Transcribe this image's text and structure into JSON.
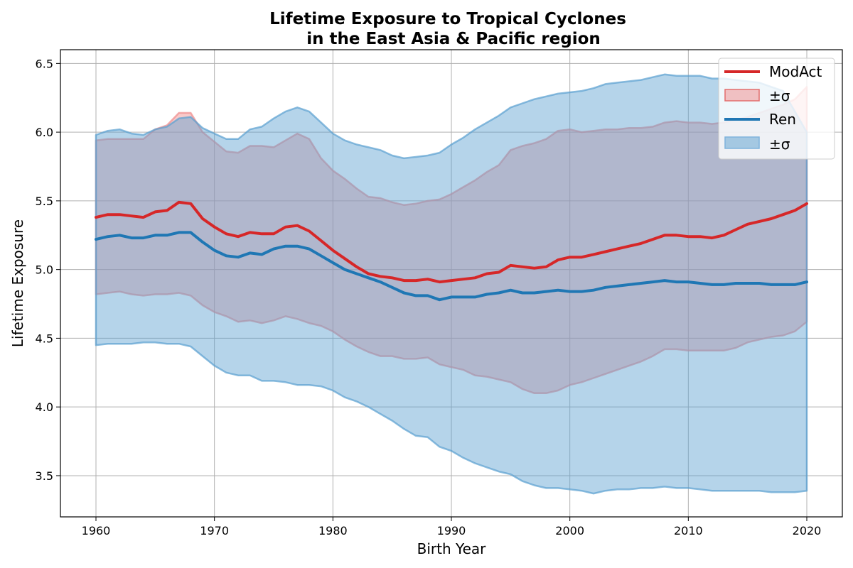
{
  "chart_data": {
    "type": "line",
    "title": [
      "Lifetime Exposure to Tropical Cyclones",
      "in the East Asia & Pacific region"
    ],
    "xlabel": "Birth Year",
    "ylabel": "Lifetime Exposure",
    "xlim": [
      1957,
      2023
    ],
    "ylim": [
      3.2,
      6.6
    ],
    "xticks": [
      1960,
      1970,
      1980,
      1990,
      2000,
      2010,
      2020
    ],
    "yticks": [
      3.5,
      4.0,
      4.5,
      5.0,
      5.5,
      6.0,
      6.5
    ],
    "ytick_labels": [
      "3.5",
      "4.0",
      "4.5",
      "5.0",
      "5.5",
      "6.0",
      "6.5"
    ],
    "grid": true,
    "legend_position": "top-right",
    "x": [
      1960,
      1961,
      1962,
      1963,
      1964,
      1965,
      1966,
      1967,
      1968,
      1969,
      1970,
      1971,
      1972,
      1973,
      1974,
      1975,
      1976,
      1977,
      1978,
      1979,
      1980,
      1981,
      1982,
      1983,
      1984,
      1985,
      1986,
      1987,
      1988,
      1989,
      1990,
      1991,
      1992,
      1993,
      1994,
      1995,
      1996,
      1997,
      1998,
      1999,
      2000,
      2001,
      2002,
      2003,
      2004,
      2005,
      2006,
      2007,
      2008,
      2009,
      2010,
      2011,
      2012,
      2013,
      2014,
      2015,
      2016,
      2017,
      2018,
      2019,
      2020
    ],
    "series": [
      {
        "name": "ModAct",
        "band_label": "±σ",
        "color": "#d62728",
        "band_color": "#f08a8a",
        "values": [
          5.38,
          5.4,
          5.4,
          5.39,
          5.38,
          5.42,
          5.43,
          5.49,
          5.48,
          5.37,
          5.31,
          5.26,
          5.24,
          5.27,
          5.26,
          5.26,
          5.31,
          5.32,
          5.28,
          5.21,
          5.14,
          5.08,
          5.02,
          4.97,
          4.95,
          4.94,
          4.92,
          4.92,
          4.93,
          4.91,
          4.92,
          4.93,
          4.94,
          4.97,
          4.98,
          5.03,
          5.02,
          5.01,
          5.02,
          5.07,
          5.09,
          5.09,
          5.11,
          5.13,
          5.15,
          5.17,
          5.19,
          5.22,
          5.25,
          5.25,
          5.24,
          5.24,
          5.23,
          5.25,
          5.29,
          5.33,
          5.35,
          5.37,
          5.4,
          5.43,
          5.48
        ],
        "upper": [
          5.94,
          5.95,
          5.95,
          5.95,
          5.95,
          6.02,
          6.05,
          6.14,
          6.14,
          6.0,
          5.93,
          5.86,
          5.85,
          5.9,
          5.9,
          5.89,
          5.94,
          5.99,
          5.95,
          5.81,
          5.72,
          5.66,
          5.59,
          5.53,
          5.52,
          5.49,
          5.47,
          5.48,
          5.5,
          5.51,
          5.55,
          5.6,
          5.65,
          5.71,
          5.76,
          5.87,
          5.9,
          5.92,
          5.95,
          6.01,
          6.02,
          6.0,
          6.01,
          6.02,
          6.02,
          6.03,
          6.03,
          6.04,
          6.07,
          6.08,
          6.07,
          6.07,
          6.06,
          6.07,
          6.09,
          6.11,
          6.14,
          6.17,
          6.2,
          6.24,
          6.33
        ],
        "lower": [
          4.82,
          4.83,
          4.84,
          4.82,
          4.81,
          4.82,
          4.82,
          4.83,
          4.81,
          4.74,
          4.69,
          4.66,
          4.62,
          4.63,
          4.61,
          4.63,
          4.66,
          4.64,
          4.61,
          4.59,
          4.55,
          4.49,
          4.44,
          4.4,
          4.37,
          4.37,
          4.35,
          4.35,
          4.36,
          4.31,
          4.29,
          4.27,
          4.23,
          4.22,
          4.2,
          4.18,
          4.13,
          4.1,
          4.1,
          4.12,
          4.16,
          4.18,
          4.21,
          4.24,
          4.27,
          4.3,
          4.33,
          4.37,
          4.42,
          4.42,
          4.41,
          4.41,
          4.41,
          4.41,
          4.43,
          4.47,
          4.49,
          4.51,
          4.52,
          4.55,
          4.62
        ]
      },
      {
        "name": "Ren",
        "band_label": "±σ",
        "color": "#1f77b4",
        "band_color": "#5a9fd0",
        "values": [
          5.22,
          5.24,
          5.25,
          5.23,
          5.23,
          5.25,
          5.25,
          5.27,
          5.27,
          5.2,
          5.14,
          5.1,
          5.09,
          5.12,
          5.11,
          5.15,
          5.17,
          5.17,
          5.15,
          5.1,
          5.05,
          5.0,
          4.97,
          4.94,
          4.91,
          4.87,
          4.83,
          4.81,
          4.81,
          4.78,
          4.8,
          4.8,
          4.8,
          4.82,
          4.83,
          4.85,
          4.83,
          4.83,
          4.84,
          4.85,
          4.84,
          4.84,
          4.85,
          4.87,
          4.88,
          4.89,
          4.9,
          4.91,
          4.92,
          4.91,
          4.91,
          4.9,
          4.89,
          4.89,
          4.9,
          4.9,
          4.9,
          4.89,
          4.89,
          4.89,
          4.91
        ],
        "upper": [
          5.98,
          6.01,
          6.02,
          5.99,
          5.98,
          6.02,
          6.04,
          6.1,
          6.11,
          6.03,
          5.99,
          5.95,
          5.95,
          6.02,
          6.04,
          6.1,
          6.15,
          6.18,
          6.15,
          6.07,
          5.99,
          5.94,
          5.91,
          5.89,
          5.87,
          5.83,
          5.81,
          5.82,
          5.83,
          5.85,
          5.91,
          5.96,
          6.02,
          6.07,
          6.12,
          6.18,
          6.21,
          6.24,
          6.26,
          6.28,
          6.29,
          6.3,
          6.32,
          6.35,
          6.36,
          6.37,
          6.38,
          6.4,
          6.42,
          6.41,
          6.41,
          6.41,
          6.39,
          6.39,
          6.38,
          6.37,
          6.36,
          6.33,
          6.3,
          6.15,
          6.0
        ],
        "lower": [
          4.45,
          4.46,
          4.46,
          4.46,
          4.47,
          4.47,
          4.46,
          4.46,
          4.44,
          4.37,
          4.3,
          4.25,
          4.23,
          4.23,
          4.19,
          4.19,
          4.18,
          4.16,
          4.16,
          4.15,
          4.12,
          4.07,
          4.04,
          4.0,
          3.95,
          3.9,
          3.84,
          3.79,
          3.78,
          3.71,
          3.68,
          3.63,
          3.59,
          3.56,
          3.53,
          3.51,
          3.46,
          3.43,
          3.41,
          3.41,
          3.4,
          3.39,
          3.37,
          3.39,
          3.4,
          3.4,
          3.41,
          3.41,
          3.42,
          3.41,
          3.41,
          3.4,
          3.39,
          3.39,
          3.39,
          3.39,
          3.39,
          3.38,
          3.38,
          3.38,
          3.39
        ]
      }
    ]
  }
}
